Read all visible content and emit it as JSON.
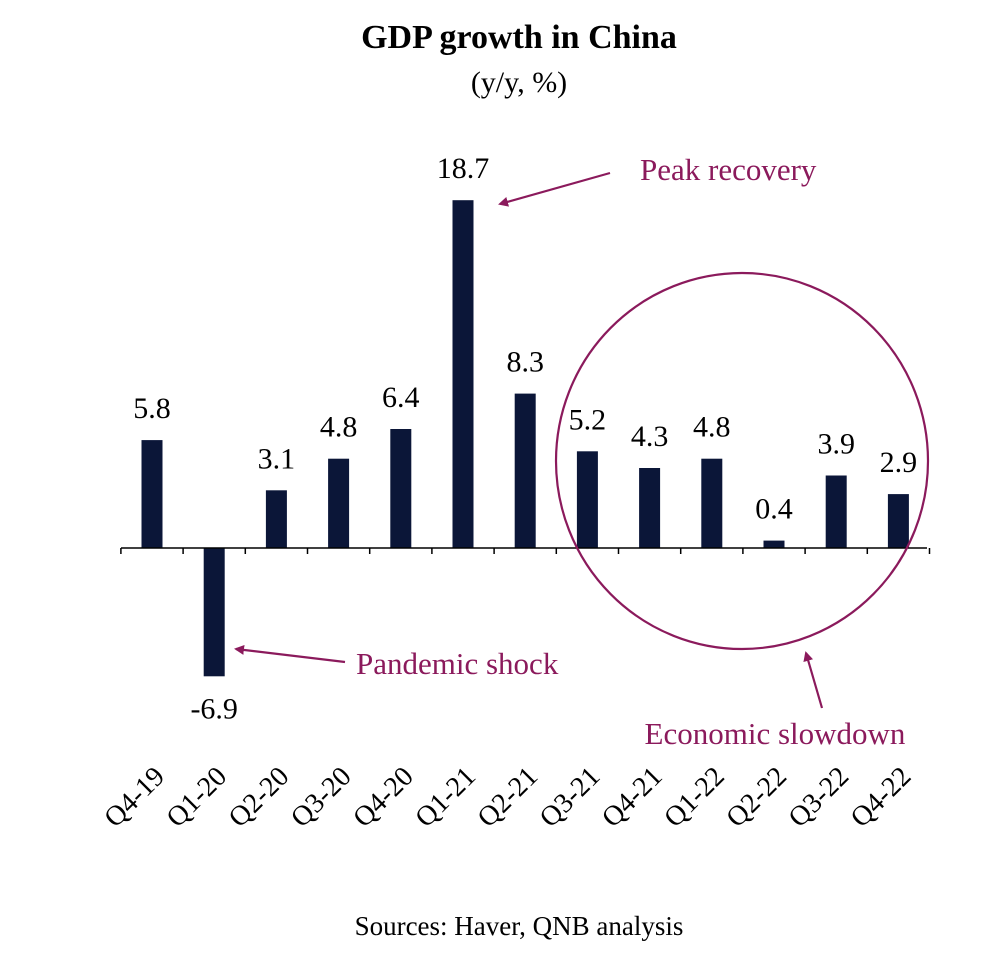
{
  "colors": {
    "bar": "#0b1638",
    "annotation": "#8b1a5c",
    "axis": "#000000"
  },
  "chart_data": {
    "type": "bar",
    "title": "GDP growth in China",
    "subtitle": "(y/y, %)",
    "xlabel": "",
    "ylabel": "",
    "categories": [
      "Q4-19",
      "Q1-20",
      "Q2-20",
      "Q3-20",
      "Q4-20",
      "Q1-21",
      "Q2-21",
      "Q3-21",
      "Q4-21",
      "Q1-22",
      "Q2-22",
      "Q3-22",
      "Q4-22"
    ],
    "values": [
      5.8,
      -6.9,
      3.1,
      4.8,
      6.4,
      18.7,
      8.3,
      5.2,
      4.3,
      4.8,
      0.4,
      3.9,
      2.9
    ],
    "data_labels": [
      "5.8",
      "-6.9",
      "3.1",
      "4.8",
      "6.4",
      "18.7",
      "8.3",
      "5.2",
      "4.3",
      "4.8",
      "0.4",
      "3.9",
      "2.9"
    ],
    "ylim": [
      -8,
      21
    ],
    "grid": false,
    "legend": "none",
    "annotations": [
      {
        "text": "Peak recovery",
        "target": "Q1-21"
      },
      {
        "text": "Pandemic shock",
        "target": "Q1-20"
      },
      {
        "text": "Economic slowdown",
        "target": "Q3-21 to Q4-22"
      }
    ]
  },
  "source": "Sources: Haver, QNB analysis"
}
